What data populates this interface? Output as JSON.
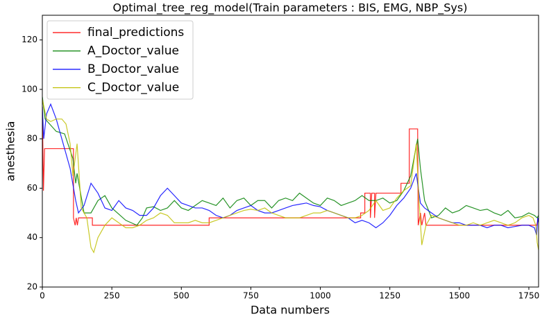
{
  "chart_data": {
    "type": "line",
    "title": "Optimal_tree_reg_model(Train parameters : BIS, EMG, NBP_Sys)",
    "x_label": "Data numbers",
    "y_label": "anesthesia",
    "xlim": [
      0,
      1785
    ],
    "ylim": [
      20,
      130
    ],
    "xticks": [
      0,
      250,
      500,
      750,
      1000,
      1250,
      1500,
      1750
    ],
    "yticks": [
      20,
      40,
      60,
      80,
      100,
      120
    ],
    "legend": "upper left",
    "series": [
      {
        "name": "final_predictions",
        "color": "#ff0000",
        "x": [
          0,
          4,
          8,
          112,
          112,
          118,
          122,
          126,
          130,
          180,
          180,
          600,
          600,
          1145,
          1145,
          1160,
          1160,
          1180,
          1180,
          1185,
          1195,
          1195,
          1200,
          1290,
          1290,
          1320,
          1320,
          1350,
          1352,
          1360,
          1365,
          1375,
          1380,
          1778,
          1785
        ],
        "values": [
          93,
          59,
          76,
          76,
          48,
          45,
          48,
          45,
          48,
          48,
          45,
          45,
          48,
          48,
          50,
          50,
          58,
          58,
          48,
          58,
          58,
          48,
          58,
          58,
          62,
          62,
          84,
          84,
          45,
          50,
          45,
          50,
          45,
          45,
          48
        ]
      },
      {
        "name": "A_Doctor_value",
        "color": "#008000",
        "x": [
          0,
          10,
          50,
          80,
          110,
          120,
          125,
          150,
          175,
          200,
          225,
          250,
          300,
          340,
          360,
          375,
          400,
          425,
          450,
          475,
          500,
          525,
          550,
          575,
          600,
          625,
          650,
          675,
          700,
          725,
          750,
          775,
          800,
          825,
          850,
          875,
          900,
          925,
          950,
          975,
          1000,
          1025,
          1050,
          1075,
          1100,
          1125,
          1150,
          1175,
          1200,
          1225,
          1250,
          1275,
          1300,
          1325,
          1350,
          1360,
          1375,
          1400,
          1425,
          1450,
          1475,
          1500,
          1525,
          1550,
          1575,
          1600,
          1625,
          1650,
          1675,
          1700,
          1725,
          1750,
          1770,
          1780,
          1785
        ],
        "values": [
          97,
          88,
          83,
          82,
          72,
          62,
          66,
          50,
          50,
          55,
          57,
          52,
          47,
          45,
          48,
          52,
          52.5,
          51,
          52,
          55,
          52,
          51,
          53,
          55,
          54,
          53,
          56,
          52,
          55,
          56,
          53,
          55,
          55,
          52,
          55,
          56,
          55,
          58,
          56,
          54,
          53,
          56,
          55,
          53,
          54,
          55,
          57,
          55,
          55,
          56,
          54,
          55,
          59,
          65,
          80,
          68,
          55,
          48,
          49,
          52,
          50,
          51,
          53,
          52,
          51,
          51.5,
          50,
          49,
          51,
          48,
          48.5,
          50,
          49,
          48,
          49
        ]
      },
      {
        "name": "B_Doctor_value",
        "color": "#0000ff",
        "x": [
          0,
          5,
          15,
          30,
          50,
          70,
          100,
          120,
          130,
          150,
          175,
          200,
          225,
          250,
          275,
          300,
          325,
          350,
          375,
          400,
          425,
          450,
          475,
          500,
          525,
          550,
          575,
          600,
          625,
          650,
          675,
          700,
          725,
          750,
          775,
          800,
          825,
          850,
          875,
          900,
          925,
          950,
          975,
          1000,
          1025,
          1050,
          1075,
          1100,
          1125,
          1150,
          1175,
          1200,
          1225,
          1250,
          1275,
          1300,
          1325,
          1345,
          1360,
          1375,
          1400,
          1425,
          1450,
          1475,
          1500,
          1525,
          1550,
          1575,
          1600,
          1625,
          1650,
          1675,
          1700,
          1725,
          1750,
          1770,
          1778,
          1782,
          1785
        ],
        "values": [
          93,
          80,
          90,
          94,
          88,
          80,
          68,
          55,
          50,
          53,
          62,
          58,
          52,
          51,
          55,
          52,
          51,
          49,
          49,
          52,
          57,
          60,
          57,
          54,
          53,
          52,
          52,
          51,
          49,
          48,
          49,
          51,
          52,
          53,
          51,
          50,
          50,
          51,
          52,
          53,
          53.5,
          54,
          53,
          52.5,
          51,
          50,
          49,
          48,
          46,
          47,
          46,
          44,
          46,
          49,
          53,
          56,
          60,
          66,
          54,
          52,
          50,
          48,
          47,
          46,
          46,
          45,
          45,
          45,
          44,
          45,
          45,
          44,
          44.5,
          45,
          45,
          44,
          41,
          48,
          46
        ]
      },
      {
        "name": "C_Doctor_value",
        "color": "#bfbf00",
        "x": [
          0,
          15,
          30,
          50,
          70,
          85,
          100,
          110,
          125,
          140,
          160,
          175,
          185,
          200,
          225,
          250,
          275,
          300,
          325,
          350,
          375,
          400,
          425,
          450,
          475,
          500,
          525,
          550,
          575,
          600,
          625,
          650,
          700,
          725,
          750,
          775,
          800,
          825,
          850,
          875,
          900,
          925,
          950,
          975,
          1000,
          1025,
          1050,
          1075,
          1100,
          1125,
          1150,
          1175,
          1200,
          1225,
          1250,
          1275,
          1300,
          1325,
          1345,
          1355,
          1365,
          1380,
          1400,
          1425,
          1450,
          1475,
          1500,
          1525,
          1550,
          1575,
          1600,
          1625,
          1650,
          1675,
          1700,
          1725,
          1750,
          1765,
          1775,
          1780,
          1785
        ],
        "values": [
          96,
          88,
          87,
          88,
          88,
          86,
          78,
          65,
          78,
          52,
          48,
          36,
          34,
          40,
          45,
          48,
          46,
          44,
          44,
          45,
          47,
          48,
          50,
          49,
          46,
          46,
          46,
          47,
          46,
          46,
          47,
          48,
          50,
          51,
          51.5,
          51,
          52,
          50,
          49,
          48,
          48,
          48,
          49,
          50,
          50,
          51,
          50,
          49,
          48,
          48,
          49,
          51,
          55,
          51,
          52,
          56,
          59,
          61,
          78,
          55,
          37,
          45,
          49,
          48,
          47,
          46,
          45,
          45,
          46,
          45,
          46,
          47,
          46,
          45,
          46,
          48,
          49,
          48,
          45,
          38,
          35
        ]
      }
    ]
  }
}
